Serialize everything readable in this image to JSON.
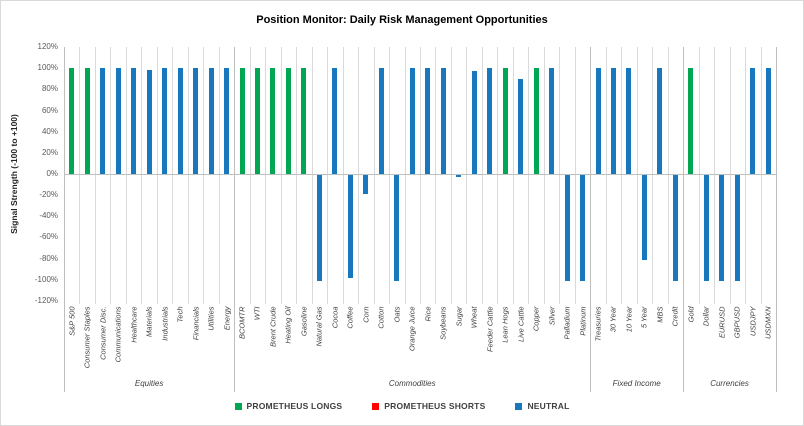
{
  "chart_data": {
    "type": "bar",
    "title": "Position Monitor: Daily Risk Management Opportunities",
    "ylabel": "Signal Strength (-100 to +100)",
    "ylim": [
      -120,
      120
    ],
    "ytick_step": 20,
    "ytick_labels": [
      "120%",
      "100%",
      "80%",
      "60%",
      "40%",
      "20%",
      "0%",
      "-20%",
      "-40%",
      "-60%",
      "-80%",
      "-100%",
      "-120%"
    ],
    "grid": "vertical-category-separators-only",
    "legend_position": "bottom",
    "signal_colors": {
      "long": "#00A651",
      "short": "#FF0000",
      "neutral": "#1878BE"
    },
    "legend": [
      {
        "label": "PROMETHEUS LONGS",
        "signal": "long",
        "color": "#00A651"
      },
      {
        "label": "PROMETHEUS SHORTS",
        "signal": "short",
        "color": "#FF0000"
      },
      {
        "label": "NEUTRAL",
        "signal": "neutral",
        "color": "#1878BE"
      }
    ],
    "groups": [
      {
        "name": "Equities",
        "items": [
          {
            "label": "S&P 500",
            "value": 100,
            "signal": "long"
          },
          {
            "label": "Consumer Staples",
            "value": 100,
            "signal": "long"
          },
          {
            "label": "Consumer Disc.",
            "value": 100,
            "signal": "neutral"
          },
          {
            "label": "Communications",
            "value": 100,
            "signal": "neutral"
          },
          {
            "label": "Healthcare",
            "value": 100,
            "signal": "neutral"
          },
          {
            "label": "Materials",
            "value": 98,
            "signal": "neutral"
          },
          {
            "label": "Industrials",
            "value": 100,
            "signal": "neutral"
          },
          {
            "label": "Tech",
            "value": 100,
            "signal": "neutral"
          },
          {
            "label": "Financials",
            "value": 100,
            "signal": "neutral"
          },
          {
            "label": "Utilities",
            "value": 100,
            "signal": "neutral"
          },
          {
            "label": "Energy",
            "value": 100,
            "signal": "neutral"
          }
        ]
      },
      {
        "name": "Commodities",
        "items": [
          {
            "label": "BCOMTR",
            "value": 100,
            "signal": "long"
          },
          {
            "label": "WTI",
            "value": 100,
            "signal": "long"
          },
          {
            "label": "Brent Crude",
            "value": 100,
            "signal": "long"
          },
          {
            "label": "Heating Oil",
            "value": 100,
            "signal": "long"
          },
          {
            "label": "Gasoline",
            "value": 100,
            "signal": "long"
          },
          {
            "label": "Natural Gas",
            "value": -100,
            "signal": "neutral"
          },
          {
            "label": "Cocoa",
            "value": 100,
            "signal": "neutral"
          },
          {
            "label": "Coffee",
            "value": -97,
            "signal": "neutral"
          },
          {
            "label": "Corn",
            "value": -18,
            "signal": "neutral"
          },
          {
            "label": "Cotton",
            "value": 100,
            "signal": "neutral"
          },
          {
            "label": "Oats",
            "value": -100,
            "signal": "neutral"
          },
          {
            "label": "Orange Juice",
            "value": 100,
            "signal": "neutral"
          },
          {
            "label": "Rice",
            "value": 100,
            "signal": "neutral"
          },
          {
            "label": "Soybeans",
            "value": 100,
            "signal": "neutral"
          },
          {
            "label": "Sugar",
            "value": -2,
            "signal": "neutral"
          },
          {
            "label": "Wheat",
            "value": 97,
            "signal": "neutral"
          },
          {
            "label": "Feeder Cattle",
            "value": 100,
            "signal": "neutral"
          },
          {
            "label": "Lean Hogs",
            "value": 100,
            "signal": "long"
          },
          {
            "label": "Live Cattle",
            "value": 90,
            "signal": "neutral"
          },
          {
            "label": "Copper",
            "value": 100,
            "signal": "long"
          },
          {
            "label": "Silver",
            "value": 100,
            "signal": "neutral"
          },
          {
            "label": "Palladium",
            "value": -100,
            "signal": "neutral"
          },
          {
            "label": "Platinum",
            "value": -100,
            "signal": "neutral"
          }
        ]
      },
      {
        "name": "Fixed Income",
        "items": [
          {
            "label": "Treasuries",
            "value": 100,
            "signal": "neutral"
          },
          {
            "label": "30 Year",
            "value": 100,
            "signal": "neutral"
          },
          {
            "label": "10 Year",
            "value": 100,
            "signal": "neutral"
          },
          {
            "label": "5 Year",
            "value": -80,
            "signal": "neutral"
          },
          {
            "label": "MBS",
            "value": 100,
            "signal": "neutral"
          },
          {
            "label": "Credit",
            "value": -100,
            "signal": "neutral"
          }
        ]
      },
      {
        "name": "Currencies",
        "items": [
          {
            "label": "Gold",
            "value": 100,
            "signal": "long"
          },
          {
            "label": "Dollar",
            "value": -100,
            "signal": "neutral"
          },
          {
            "label": "EURUSD",
            "value": -100,
            "signal": "neutral"
          },
          {
            "label": "GBPUSD",
            "value": -100,
            "signal": "neutral"
          },
          {
            "label": "USDJPY",
            "value": 100,
            "signal": "neutral"
          },
          {
            "label": "USDMXN",
            "value": 100,
            "signal": "neutral"
          }
        ]
      }
    ]
  }
}
